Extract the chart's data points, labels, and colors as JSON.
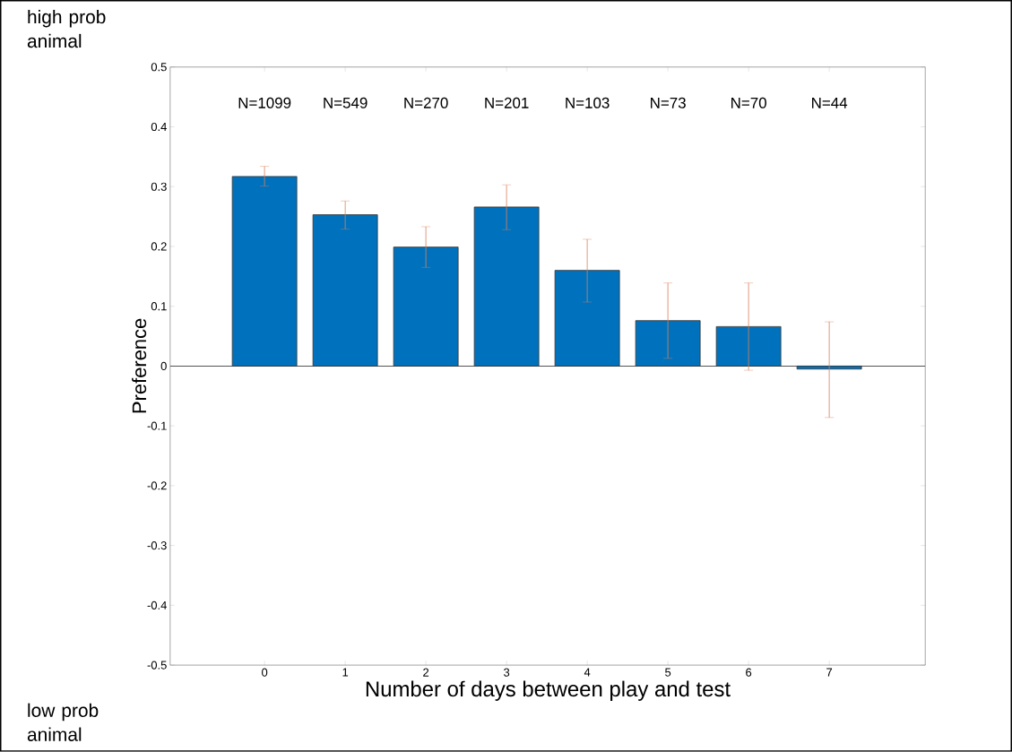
{
  "chart_data": {
    "type": "bar",
    "xlabel": "Number of days between play and test",
    "ylabel": "Preference",
    "categories": [
      "0",
      "1",
      "2",
      "3",
      "4",
      "5",
      "6",
      "7"
    ],
    "values": [
      0.317,
      0.253,
      0.199,
      0.266,
      0.16,
      0.076,
      0.066,
      -0.005
    ],
    "errors": [
      [
        0.301,
        0.334
      ],
      [
        0.229,
        0.276
      ],
      [
        0.165,
        0.233
      ],
      [
        0.228,
        0.303
      ],
      [
        0.107,
        0.212
      ],
      [
        0.013,
        0.139
      ],
      [
        -0.007,
        0.139
      ],
      [
        -0.086,
        0.074
      ]
    ],
    "color": "#0072bd",
    "ylim": [
      -0.5,
      0.5
    ],
    "yticks": [
      -0.5,
      -0.4,
      -0.3,
      -0.2,
      -0.1,
      0,
      0.1,
      0.2,
      0.3,
      0.4,
      0.5
    ],
    "ref_lines": [
      {
        "axis": "y",
        "value": 0,
        "color": "#555555"
      }
    ],
    "annotations": [
      "high prob animal",
      "low prob animal",
      "N=1099",
      "N=549",
      "N=270",
      "N=201",
      "N=103",
      "N=73",
      "N=70",
      "N=44"
    ]
  }
}
